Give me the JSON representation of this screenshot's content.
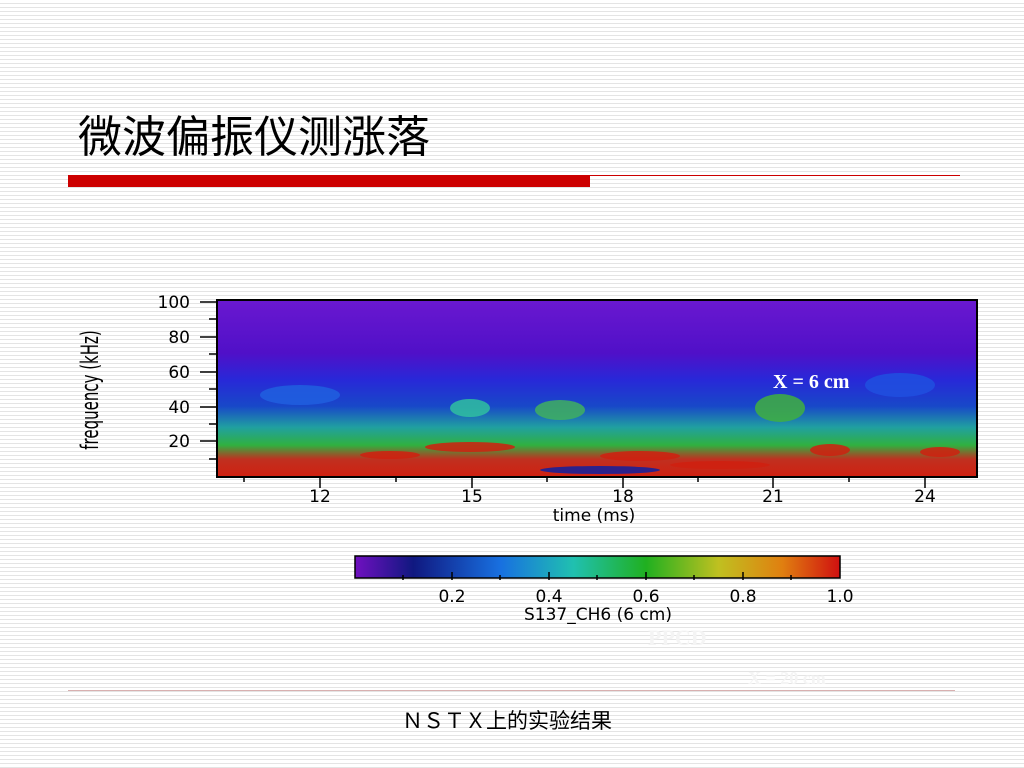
{
  "slide": {
    "title": "微波偏振仪测涨落",
    "figure": {
      "y_label": "frequency (kHz)",
      "y_ticks": [
        "100",
        "80",
        "60",
        "40",
        "20"
      ],
      "x_ticks": [
        "12",
        "15",
        "18",
        "21",
        "24"
      ],
      "x_label": "time (ms)",
      "annotation": "X = 6 cm",
      "colorbar_ticks": [
        "0.2",
        "0.4",
        "0.6",
        "0.8",
        "1.0"
      ],
      "colorbar_label": "S137_CH6 (6 cm)"
    },
    "faint_labels": [
      "PPCD",
      "X = 20 cm"
    ],
    "caption": "ＮＳＴＸ上的实验结果"
  }
}
